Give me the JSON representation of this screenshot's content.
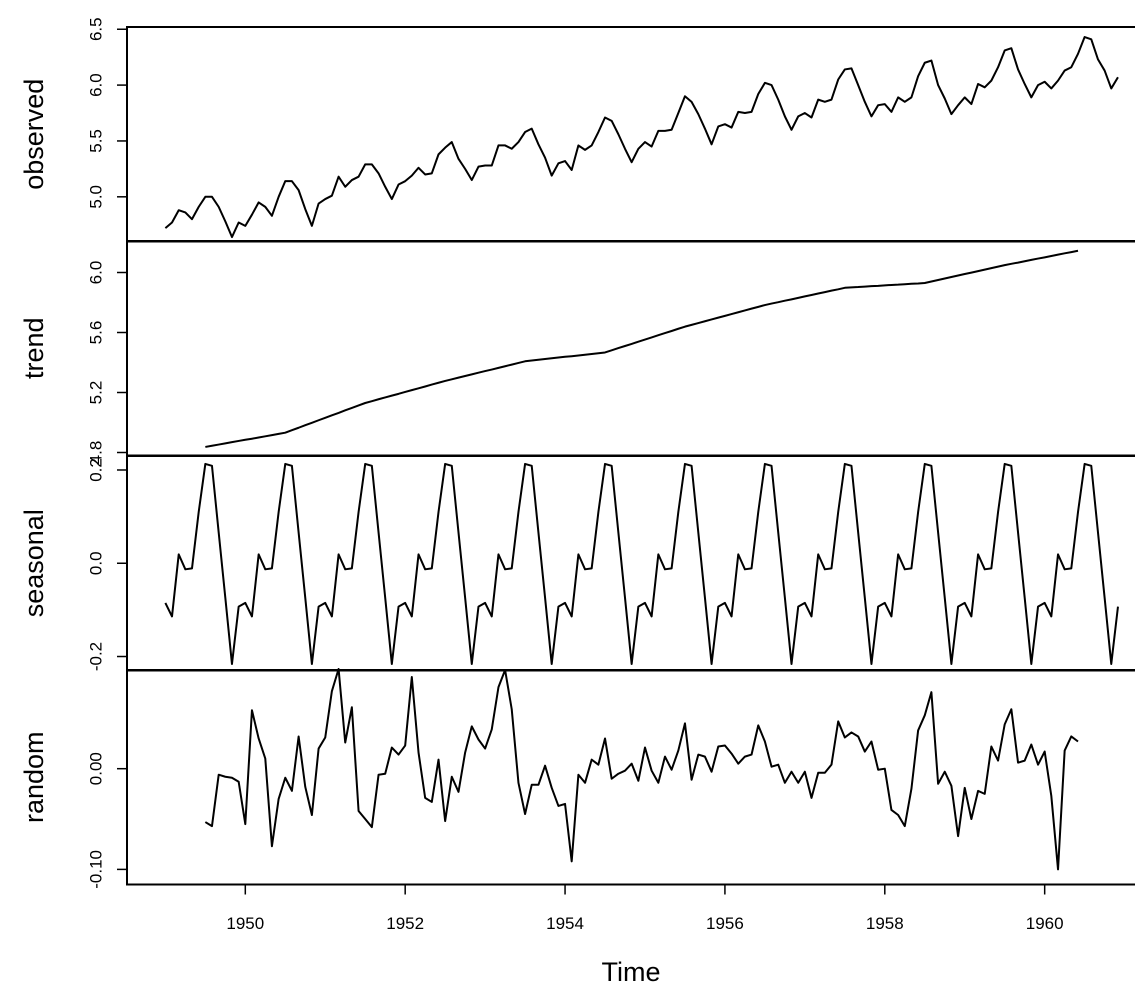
{
  "chart_data": {
    "type": "line",
    "xlabel": "Time",
    "color": "#000000",
    "xlim": [
      1948.52,
      1961.13
    ],
    "xticks": [
      1950,
      1952,
      1954,
      1956,
      1958,
      1960
    ],
    "x": [
      1949,
      1949.083,
      1949.167,
      1949.25,
      1949.333,
      1949.417,
      1949.5,
      1949.583,
      1949.667,
      1949.75,
      1949.833,
      1949.917,
      1950,
      1950.083,
      1950.167,
      1950.25,
      1950.333,
      1950.417,
      1950.5,
      1950.583,
      1950.667,
      1950.75,
      1950.833,
      1950.917,
      1951,
      1951.083,
      1951.167,
      1951.25,
      1951.333,
      1951.417,
      1951.5,
      1951.583,
      1951.667,
      1951.75,
      1951.833,
      1951.917,
      1952,
      1952.083,
      1952.167,
      1952.25,
      1952.333,
      1952.417,
      1952.5,
      1952.583,
      1952.667,
      1952.75,
      1952.833,
      1952.917,
      1953,
      1953.083,
      1953.167,
      1953.25,
      1953.333,
      1953.417,
      1953.5,
      1953.583,
      1953.667,
      1953.75,
      1953.833,
      1953.917,
      1954,
      1954.083,
      1954.167,
      1954.25,
      1954.333,
      1954.417,
      1954.5,
      1954.583,
      1954.667,
      1954.75,
      1954.833,
      1954.917,
      1955,
      1955.083,
      1955.167,
      1955.25,
      1955.333,
      1955.417,
      1955.5,
      1955.583,
      1955.667,
      1955.75,
      1955.833,
      1955.917,
      1956,
      1956.083,
      1956.167,
      1956.25,
      1956.333,
      1956.417,
      1956.5,
      1956.583,
      1956.667,
      1956.75,
      1956.833,
      1956.917,
      1957,
      1957.083,
      1957.167,
      1957.25,
      1957.333,
      1957.417,
      1957.5,
      1957.583,
      1957.667,
      1957.75,
      1957.833,
      1957.917,
      1958,
      1958.083,
      1958.167,
      1958.25,
      1958.333,
      1958.417,
      1958.5,
      1958.583,
      1958.667,
      1958.75,
      1958.833,
      1958.917,
      1959,
      1959.083,
      1959.167,
      1959.25,
      1959.333,
      1959.417,
      1959.5,
      1959.583,
      1959.667,
      1959.75,
      1959.833,
      1959.917,
      1960,
      1960.083,
      1960.167,
      1960.25,
      1960.333,
      1960.417,
      1960.5,
      1960.583,
      1960.667,
      1960.75,
      1960.833,
      1960.917
    ],
    "panels": [
      {
        "ylabel": "observed",
        "ylim": [
          4.6,
          6.52
        ],
        "yticks": [
          {
            "value": 5,
            "label": "5.0"
          },
          5.5,
          {
            "value": 6,
            "label": "6.0"
          },
          6.5
        ],
        "values": [
          4.72,
          4.77,
          4.88,
          4.86,
          4.8,
          4.91,
          5.0,
          5.0,
          4.91,
          4.78,
          4.64,
          4.77,
          4.74,
          4.84,
          4.95,
          4.91,
          4.83,
          5.0,
          5.14,
          5.14,
          5.06,
          4.89,
          4.74,
          4.94,
          4.98,
          5.01,
          5.18,
          5.09,
          5.15,
          5.18,
          5.29,
          5.29,
          5.21,
          5.09,
          4.98,
          5.11,
          5.14,
          5.19,
          5.26,
          5.2,
          5.21,
          5.38,
          5.44,
          5.49,
          5.34,
          5.25,
          5.15,
          5.27,
          5.28,
          5.28,
          5.46,
          5.46,
          5.43,
          5.49,
          5.58,
          5.61,
          5.47,
          5.35,
          5.19,
          5.3,
          5.32,
          5.24,
          5.46,
          5.42,
          5.46,
          5.58,
          5.71,
          5.68,
          5.56,
          5.43,
          5.31,
          5.43,
          5.49,
          5.45,
          5.59,
          5.59,
          5.6,
          5.75,
          5.9,
          5.85,
          5.74,
          5.61,
          5.47,
          5.63,
          5.65,
          5.62,
          5.76,
          5.75,
          5.76,
          5.92,
          6.02,
          6.0,
          5.87,
          5.72,
          5.6,
          5.72,
          5.75,
          5.71,
          5.87,
          5.85,
          5.87,
          6.05,
          6.14,
          6.15,
          6.0,
          5.85,
          5.72,
          5.82,
          5.83,
          5.76,
          5.89,
          5.85,
          5.89,
          6.08,
          6.2,
          6.22,
          6.0,
          5.88,
          5.74,
          5.82,
          5.89,
          5.83,
          6.01,
          5.98,
          6.04,
          6.16,
          6.31,
          6.33,
          6.14,
          6.01,
          5.89,
          6.0,
          6.03,
          5.97,
          6.04,
          6.13,
          6.16,
          6.28,
          6.43,
          6.41,
          6.23,
          6.13,
          5.97,
          6.07
        ]
      },
      {
        "ylabel": "trend",
        "ylim": [
          4.78,
          6.21
        ],
        "yticks": [
          4.8,
          5.2,
          5.6,
          {
            "value": 6,
            "label": "6.0"
          }
        ],
        "values": [
          null,
          null,
          null,
          null,
          null,
          null,
          4.837,
          4.845,
          4.853,
          4.861,
          4.869,
          4.877,
          4.885,
          4.892,
          4.9,
          4.908,
          4.916,
          4.924,
          4.932,
          4.949,
          4.965,
          4.982,
          4.998,
          5.015,
          5.031,
          5.048,
          5.064,
          5.081,
          5.097,
          5.114,
          5.13,
          5.142,
          5.155,
          5.167,
          5.179,
          5.191,
          5.204,
          5.216,
          5.228,
          5.24,
          5.253,
          5.265,
          5.277,
          5.288,
          5.299,
          5.31,
          5.321,
          5.332,
          5.343,
          5.353,
          5.364,
          5.375,
          5.386,
          5.397,
          5.408,
          5.413,
          5.418,
          5.423,
          5.428,
          5.433,
          5.438,
          5.442,
          5.447,
          5.452,
          5.457,
          5.462,
          5.467,
          5.481,
          5.496,
          5.51,
          5.524,
          5.539,
          5.553,
          5.567,
          5.582,
          5.596,
          5.61,
          5.625,
          5.639,
          5.651,
          5.663,
          5.675,
          5.687,
          5.699,
          5.711,
          5.723,
          5.735,
          5.747,
          5.759,
          5.771,
          5.783,
          5.793,
          5.802,
          5.812,
          5.821,
          5.831,
          5.841,
          5.85,
          5.86,
          5.869,
          5.879,
          5.888,
          5.898,
          5.901,
          5.903,
          5.906,
          5.909,
          5.911,
          5.914,
          5.917,
          5.919,
          5.922,
          5.925,
          5.927,
          5.93,
          5.94,
          5.95,
          5.96,
          5.97,
          5.98,
          5.99,
          5.999,
          6.009,
          6.019,
          6.029,
          6.039,
          6.049,
          6.058,
          6.066,
          6.075,
          6.084,
          6.093,
          6.101,
          6.11,
          6.119,
          6.128,
          6.136,
          6.145,
          null,
          null,
          null,
          null,
          null,
          null
        ]
      },
      {
        "ylabel": "seasonal",
        "ylim": [
          -0.23,
          0.23
        ],
        "yticks": [
          -0.2,
          {
            "value": 0,
            "label": "0.0"
          },
          0.2
        ],
        "values": [
          -0.085,
          -0.114,
          0.019,
          -0.013,
          -0.011,
          0.11,
          0.213,
          0.209,
          0.066,
          -0.074,
          -0.216,
          -0.093,
          -0.085,
          -0.114,
          0.019,
          -0.013,
          -0.011,
          0.11,
          0.213,
          0.209,
          0.066,
          -0.074,
          -0.216,
          -0.093,
          -0.085,
          -0.114,
          0.019,
          -0.013,
          -0.011,
          0.11,
          0.213,
          0.209,
          0.066,
          -0.074,
          -0.216,
          -0.093,
          -0.085,
          -0.114,
          0.019,
          -0.013,
          -0.011,
          0.11,
          0.213,
          0.209,
          0.066,
          -0.074,
          -0.216,
          -0.093,
          -0.085,
          -0.114,
          0.019,
          -0.013,
          -0.011,
          0.11,
          0.213,
          0.209,
          0.066,
          -0.074,
          -0.216,
          -0.093,
          -0.085,
          -0.114,
          0.019,
          -0.013,
          -0.011,
          0.11,
          0.213,
          0.209,
          0.066,
          -0.074,
          -0.216,
          -0.093,
          -0.085,
          -0.114,
          0.019,
          -0.013,
          -0.011,
          0.11,
          0.213,
          0.209,
          0.066,
          -0.074,
          -0.216,
          -0.093,
          -0.085,
          -0.114,
          0.019,
          -0.013,
          -0.011,
          0.11,
          0.213,
          0.209,
          0.066,
          -0.074,
          -0.216,
          -0.093,
          -0.085,
          -0.114,
          0.019,
          -0.013,
          -0.011,
          0.11,
          0.213,
          0.209,
          0.066,
          -0.074,
          -0.216,
          -0.093,
          -0.085,
          -0.114,
          0.019,
          -0.013,
          -0.011,
          0.11,
          0.213,
          0.209,
          0.066,
          -0.074,
          -0.216,
          -0.093,
          -0.085,
          -0.114,
          0.019,
          -0.013,
          -0.011,
          0.11,
          0.213,
          0.209,
          0.066,
          -0.074,
          -0.216,
          -0.093,
          -0.085,
          -0.114,
          0.019,
          -0.013,
          -0.011,
          0.11,
          0.213,
          0.209,
          0.066,
          -0.074,
          -0.216,
          -0.093
        ]
      },
      {
        "ylabel": "random",
        "ylim": [
          -0.115,
          0.098
        ],
        "yticks": [
          {
            "value": -0.1,
            "label": "-0.10"
          },
          {
            "value": 0,
            "label": "0.00"
          }
        ],
        "values": [
          null,
          null,
          null,
          null,
          null,
          null,
          -0.053,
          -0.057,
          -0.006,
          -0.008,
          -0.009,
          -0.013,
          -0.055,
          0.058,
          0.03,
          0.01,
          -0.077,
          -0.03,
          -0.009,
          -0.022,
          0.032,
          -0.018,
          -0.046,
          0.02,
          0.031,
          0.077,
          0.099,
          0.026,
          0.061,
          -0.042,
          -0.05,
          -0.058,
          -0.006,
          -0.005,
          0.021,
          0.014,
          0.023,
          0.091,
          0.016,
          -0.029,
          -0.033,
          0.009,
          -0.052,
          -0.008,
          -0.023,
          0.016,
          0.042,
          0.029,
          0.02,
          0.039,
          0.081,
          0.098,
          0.059,
          -0.014,
          -0.045,
          -0.016,
          -0.016,
          0.003,
          -0.019,
          -0.037,
          -0.035,
          -0.092,
          -0.006,
          -0.014,
          0.009,
          0.004,
          0.03,
          -0.01,
          -0.005,
          -0.002,
          0.005,
          -0.012,
          0.021,
          -0.002,
          -0.014,
          0.012,
          -0.001,
          0.018,
          0.045,
          -0.011,
          0.014,
          0.012,
          -0.003,
          0.022,
          0.023,
          0.015,
          0.005,
          0.012,
          0.014,
          0.043,
          0.027,
          0.002,
          0.004,
          -0.014,
          -0.003,
          -0.014,
          -0.003,
          -0.029,
          -0.004,
          -0.004,
          0.004,
          0.047,
          0.031,
          0.036,
          0.032,
          0.017,
          0.027,
          -0.001,
          0.0,
          -0.041,
          -0.046,
          -0.057,
          -0.02,
          0.038,
          0.053,
          0.076,
          -0.015,
          -0.003,
          -0.017,
          -0.067,
          -0.019,
          -0.05,
          -0.022,
          -0.025,
          0.022,
          0.008,
          0.044,
          0.059,
          0.006,
          0.008,
          0.024,
          0.004,
          0.017,
          -0.027,
          -0.1,
          0.018,
          0.032,
          0.027,
          null,
          null,
          null,
          null,
          null,
          null
        ]
      }
    ]
  }
}
